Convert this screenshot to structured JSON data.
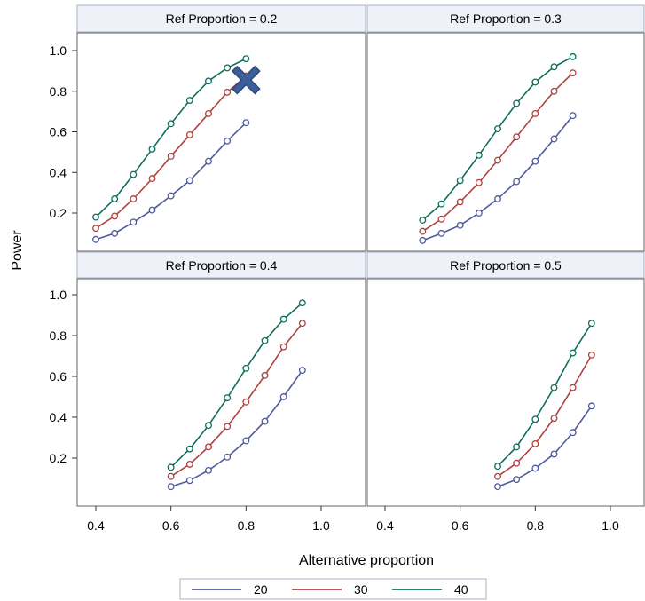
{
  "chart_data": {
    "type": "line",
    "xlabel": "Alternative proportion",
    "ylabel": "Power",
    "xlim": [
      0.32,
      1.12
    ],
    "ylim": [
      0,
      1.1
    ],
    "x_ticks": [
      "0.4",
      "0.6",
      "0.8",
      "1.0"
    ],
    "y_ticks": [
      "0.2",
      "0.4",
      "0.6",
      "0.8",
      "1.0"
    ],
    "colors": {
      "20": "#4f5a9e",
      "30": "#b0413e",
      "40": "#0e6e5c",
      "marker": "#3a5f9a"
    },
    "legend": {
      "position": "bottom",
      "entries": [
        "20",
        "30",
        "40"
      ]
    },
    "panels": [
      {
        "title": "Ref Proportion = 0.2",
        "x": [
          0.4,
          0.45,
          0.5,
          0.55,
          0.6,
          0.65,
          0.7,
          0.75,
          0.8
        ],
        "series": [
          {
            "name": "20",
            "values": [
              0.07,
              0.1,
              0.155,
              0.215,
              0.285,
              0.36,
              0.455,
              0.555,
              0.645
            ]
          },
          {
            "name": "30",
            "values": [
              0.125,
              0.185,
              0.27,
              0.37,
              0.48,
              0.585,
              0.69,
              0.795,
              0.875
            ]
          },
          {
            "name": "40",
            "values": [
              0.18,
              0.27,
              0.39,
              0.515,
              0.64,
              0.755,
              0.85,
              0.915,
              0.96
            ]
          }
        ],
        "highlight": {
          "x": 0.8,
          "y": 0.855
        }
      },
      {
        "title": "Ref Proportion = 0.3",
        "x": [
          0.5,
          0.55,
          0.6,
          0.65,
          0.7,
          0.75,
          0.8,
          0.85,
          0.9
        ],
        "series": [
          {
            "name": "20",
            "values": [
              0.065,
              0.1,
              0.14,
              0.2,
              0.27,
              0.355,
              0.455,
              0.565,
              0.68
            ]
          },
          {
            "name": "30",
            "values": [
              0.11,
              0.17,
              0.255,
              0.35,
              0.46,
              0.575,
              0.69,
              0.8,
              0.89
            ]
          },
          {
            "name": "40",
            "values": [
              0.165,
              0.245,
              0.36,
              0.485,
              0.615,
              0.74,
              0.845,
              0.92,
              0.97
            ]
          }
        ]
      },
      {
        "title": "Ref Proportion = 0.4",
        "x": [
          0.6,
          0.65,
          0.7,
          0.75,
          0.8,
          0.85,
          0.9,
          0.95
        ],
        "series": [
          {
            "name": "20",
            "values": [
              0.06,
              0.09,
              0.14,
              0.205,
              0.285,
              0.38,
              0.5,
              0.63
            ]
          },
          {
            "name": "30",
            "values": [
              0.11,
              0.17,
              0.255,
              0.355,
              0.475,
              0.605,
              0.745,
              0.86
            ]
          },
          {
            "name": "40",
            "values": [
              0.155,
              0.245,
              0.36,
              0.495,
              0.64,
              0.775,
              0.88,
              0.96
            ]
          }
        ]
      },
      {
        "title": "Ref Proportion = 0.5",
        "x": [
          0.7,
          0.75,
          0.8,
          0.85,
          0.9,
          0.95
        ],
        "series": [
          {
            "name": "20",
            "values": [
              0.06,
              0.095,
              0.15,
              0.22,
              0.325,
              0.455
            ]
          },
          {
            "name": "30",
            "values": [
              0.11,
              0.175,
              0.27,
              0.395,
              0.545,
              0.705
            ]
          },
          {
            "name": "40",
            "values": [
              0.16,
              0.255,
              0.39,
              0.545,
              0.715,
              0.86
            ]
          }
        ]
      }
    ]
  }
}
